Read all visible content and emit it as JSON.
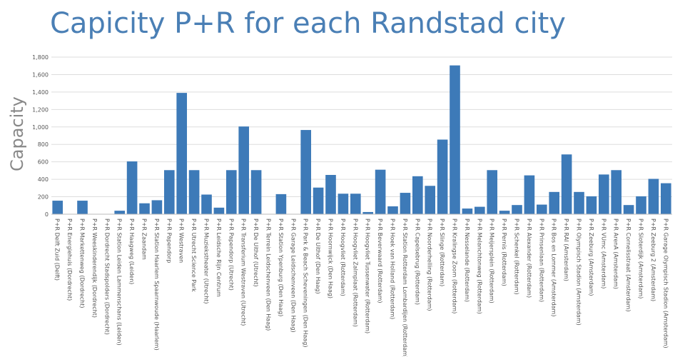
{
  "chart_data": {
    "type": "bar",
    "title": "Capicity P+R for each Randstad city",
    "ylabel": "Capacity",
    "xlabel": "",
    "ylim": [
      0,
      1800
    ],
    "yticks": [
      0,
      200,
      400,
      600,
      800,
      1000,
      1200,
      1400,
      1600,
      1800
    ],
    "ytick_labels": [
      "0",
      "200",
      "400",
      "600",
      "800",
      "1,000",
      "1,200",
      "1,400",
      "1,600",
      "1,800"
    ],
    "grid": true,
    "bar_color": "#3d7ab8",
    "categories": [
      "P+R Delft Zuid (Delft)",
      "P+R Energiehuis (Dordrecht)",
      "P+R Markettenweg (Dordrecht)",
      "P+R Weeskinderendijk (Dordrecht)",
      "P+R Dordrecht Stadspolders (Dordrecht)",
      "P+R Station Leiden Lammenschans (Leiden)",
      "P+R Haagweg (Leiden)",
      "P+R Zaandam",
      "P+R Station Haarlem Spaarnwoude (Haarlem)",
      "P+R Papendorp",
      "P+R Westraven",
      "P+R Utrecht Science Park",
      "P+R Muziekstheater (Utrecht)",
      "P+R Leidsche Rijn Centrum",
      "P+R Papendorp (Utrecht)",
      "P+R Transferium Westraven (Utrecht)",
      "P+R De Uithof (Utrecht)",
      "P+R Terrein Leidschenveen (Den Haag)",
      "P+R Station Ypenburg (Den Haag)",
      "P+R Garage Leidschenveen (Den Haag)",
      "P+R Park & Beach Scheveningen (Den Haag)",
      "P+R De Uithof (Den Haag)",
      "P+R Hoornwijck (Den Haag)",
      "P+R Hoogvliet (Rotterdam)",
      "P+R Hoogvliet Zalmplaat (Rotterdam)",
      "P+R Hoogvliet Tussenwater (Rotterdam)",
      "P+R Beverwaard (Rotterdam)",
      "P+R Hoek van Holland (Rotterdam)",
      "P+R Station Rotterdam Lombardijen (Rotterdam)",
      "P+R Capelsebrug (Rotterdam)",
      "P+R Noorderhelling (Rotterdam)",
      "P+R Slinge (Rotterdam)",
      "P+R Kralingse Zoom (Rotterdam)",
      "P+R Nesselande (Rotterdam)",
      "P+R Melanchtonweg (Rotterdam)",
      "P+R Meijersplein (Rotterdam)",
      "P+R Pernis (Rotterdam)",
      "P+R Schenkel (Rotterdam)",
      "P+R Alexander (Rotterdam)",
      "P+R Prinsenlaan (Rotterdam)",
      "P+R Bos en Lommer (Amsterdam)",
      "P+R RAI (Amsterdam)",
      "P+R Olympisch Stadion (Amsterdam)",
      "P+R Zeeburg (Amsterdam)",
      "P+R VUmc (Amsterdam)",
      "P+R ArenA (Amsterdam)",
      "P+R Cornelisstraat (Amsterdam)",
      "P+R Sloterdijk (Amsterdam)",
      "P+R Zeeburg 2 (Amsterdam)",
      "P+R Garage Olympisch Stadion (Amsterdam)"
    ],
    "values": [
      155,
      0,
      155,
      0,
      0,
      40,
      605,
      125,
      160,
      505,
      1390,
      505,
      225,
      75,
      505,
      1005,
      505,
      0,
      230,
      0,
      965,
      305,
      450,
      235,
      235,
      25,
      510,
      90,
      245,
      435,
      325,
      855,
      1705,
      65,
      85,
      505,
      40,
      105,
      445,
      110,
      255,
      685,
      255,
      205,
      455,
      505,
      105,
      205,
      405,
      355
    ]
  }
}
